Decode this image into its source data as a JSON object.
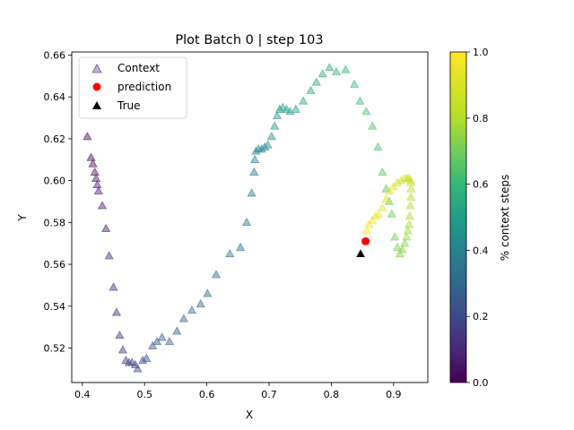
{
  "chart_data": {
    "type": "scatter",
    "title": "Plot Batch 0 | step 103",
    "xlabel": "X",
    "ylabel": "Y",
    "xlim": [
      0.383,
      0.955
    ],
    "ylim": [
      0.5035,
      0.6615
    ],
    "xticks": [
      0.4,
      0.5,
      0.6,
      0.7,
      0.8,
      0.9
    ],
    "yticks": [
      0.52,
      0.54,
      0.56,
      0.58,
      0.6,
      0.62,
      0.64,
      0.66
    ],
    "xtick_labels": [
      "0.4",
      "0.5",
      "0.6",
      "0.7",
      "0.8",
      "0.9"
    ],
    "ytick_labels": [
      "0.52",
      "0.54",
      "0.56",
      "0.58",
      "0.60",
      "0.62",
      "0.64",
      "0.66"
    ],
    "grid": false,
    "legend_position": "top-left",
    "legend": [
      {
        "label": "Context",
        "marker": "triangle",
        "color": "#9a7cb1"
      },
      {
        "label": "prediction",
        "marker": "circle",
        "color": "#ff0000"
      },
      {
        "label": "True",
        "marker": "triangle",
        "color": "#000000"
      }
    ],
    "colorbar": {
      "label": "% context steps",
      "range": [
        0.0,
        1.0
      ],
      "ticks": [
        0.0,
        0.2,
        0.4,
        0.6,
        0.8,
        1.0
      ],
      "tick_labels": [
        "0.0",
        "0.2",
        "0.4",
        "0.6",
        "0.8",
        "1.0"
      ],
      "colormap": "viridis"
    },
    "series": [
      {
        "name": "Context",
        "marker": "triangle",
        "alpha": 0.45,
        "points": [
          [
            0.408,
            0.621
          ],
          [
            0.414,
            0.611
          ],
          [
            0.417,
            0.608
          ],
          [
            0.42,
            0.604
          ],
          [
            0.422,
            0.601
          ],
          [
            0.424,
            0.598
          ],
          [
            0.426,
            0.595
          ],
          [
            0.432,
            0.588
          ],
          [
            0.438,
            0.577
          ],
          [
            0.443,
            0.564
          ],
          [
            0.45,
            0.549
          ],
          [
            0.455,
            0.537
          ],
          [
            0.46,
            0.526
          ],
          [
            0.465,
            0.519
          ],
          [
            0.47,
            0.514
          ],
          [
            0.475,
            0.513
          ],
          [
            0.48,
            0.513
          ],
          [
            0.485,
            0.512
          ],
          [
            0.489,
            0.51
          ],
          [
            0.497,
            0.514
          ],
          [
            0.503,
            0.515
          ],
          [
            0.513,
            0.521
          ],
          [
            0.52,
            0.523
          ],
          [
            0.528,
            0.525
          ],
          [
            0.54,
            0.523
          ],
          [
            0.552,
            0.528
          ],
          [
            0.563,
            0.534
          ],
          [
            0.576,
            0.538
          ],
          [
            0.59,
            0.541
          ],
          [
            0.601,
            0.546
          ],
          [
            0.615,
            0.555
          ],
          [
            0.637,
            0.565
          ],
          [
            0.654,
            0.568
          ],
          [
            0.664,
            0.58
          ],
          [
            0.672,
            0.594
          ],
          [
            0.676,
            0.604
          ],
          [
            0.677,
            0.61
          ],
          [
            0.679,
            0.614
          ],
          [
            0.683,
            0.615
          ],
          [
            0.688,
            0.615
          ],
          [
            0.693,
            0.616
          ],
          [
            0.698,
            0.617
          ],
          [
            0.704,
            0.621
          ],
          [
            0.709,
            0.626
          ],
          [
            0.713,
            0.631
          ],
          [
            0.717,
            0.634
          ],
          [
            0.722,
            0.635
          ],
          [
            0.728,
            0.634
          ],
          [
            0.734,
            0.633
          ],
          [
            0.743,
            0.634
          ],
          [
            0.755,
            0.638
          ],
          [
            0.767,
            0.643
          ],
          [
            0.776,
            0.647
          ],
          [
            0.786,
            0.651
          ],
          [
            0.797,
            0.654
          ],
          [
            0.808,
            0.652
          ],
          [
            0.823,
            0.653
          ],
          [
            0.837,
            0.646
          ],
          [
            0.846,
            0.638
          ],
          [
            0.856,
            0.633
          ],
          [
            0.866,
            0.626
          ],
          [
            0.875,
            0.616
          ],
          [
            0.882,
            0.604
          ],
          [
            0.888,
            0.596
          ],
          [
            0.893,
            0.59
          ],
          [
            0.897,
            0.584
          ],
          [
            0.902,
            0.573
          ],
          [
            0.906,
            0.568
          ],
          [
            0.91,
            0.565
          ],
          [
            0.914,
            0.567
          ],
          [
            0.918,
            0.57
          ],
          [
            0.921,
            0.573
          ],
          [
            0.923,
            0.576
          ],
          [
            0.925,
            0.579
          ],
          [
            0.926,
            0.583
          ],
          [
            0.927,
            0.588
          ],
          [
            0.928,
            0.592
          ],
          [
            0.928,
            0.596
          ],
          [
            0.928,
            0.599
          ],
          [
            0.927,
            0.6
          ],
          [
            0.925,
            0.601
          ],
          [
            0.922,
            0.601
          ],
          [
            0.918,
            0.601
          ],
          [
            0.912,
            0.6
          ],
          [
            0.906,
            0.599
          ],
          [
            0.9,
            0.597
          ],
          [
            0.893,
            0.595
          ],
          [
            0.888,
            0.591
          ],
          [
            0.882,
            0.587
          ],
          [
            0.876,
            0.584
          ],
          [
            0.871,
            0.583
          ],
          [
            0.866,
            0.581
          ],
          [
            0.861,
            0.579
          ],
          [
            0.857,
            0.576
          ],
          [
            0.855,
            0.571
          ]
        ]
      },
      {
        "name": "prediction",
        "marker": "circle",
        "points": [
          [
            0.855,
            0.571
          ]
        ]
      },
      {
        "name": "True",
        "marker": "triangle",
        "points": [
          [
            0.847,
            0.565
          ]
        ]
      }
    ]
  }
}
